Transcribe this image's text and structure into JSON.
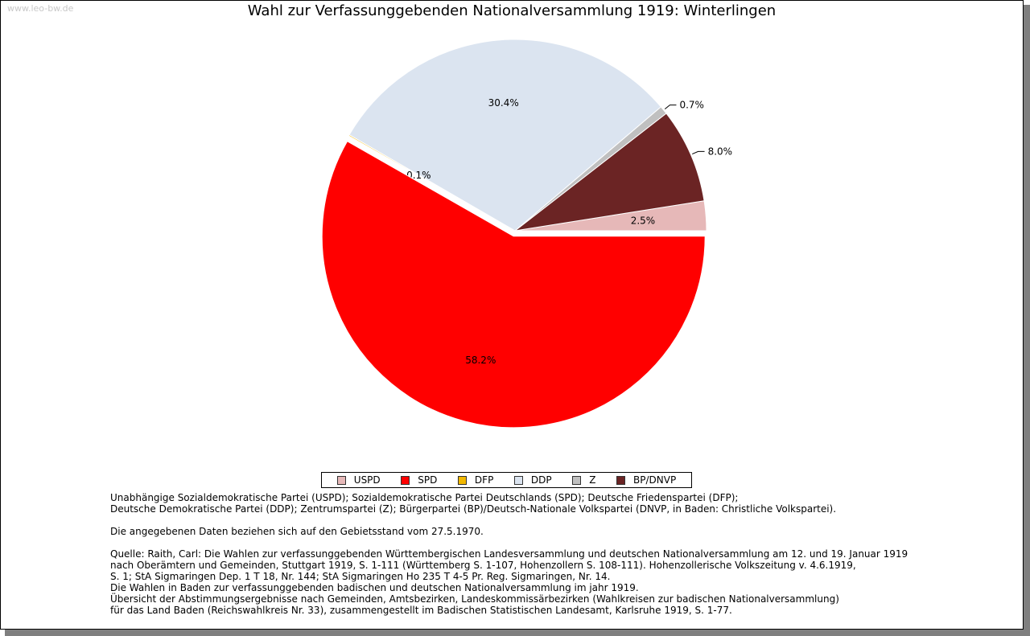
{
  "watermark": "www.leo-bw.de",
  "chart_data": {
    "type": "pie",
    "title": "Wahl zur Verfassunggebenden Nationalversammlung 1919: Winterlingen",
    "slices": [
      {
        "name": "USPD",
        "value": 2.5,
        "label": "2.5%",
        "color": "#e6b8b8"
      },
      {
        "name": "BP/DNVP",
        "value": 8.0,
        "label": "8.0%",
        "color": "#6b2424"
      },
      {
        "name": "Z",
        "value": 0.7,
        "label": "0.7%",
        "color": "#c0c0c0"
      },
      {
        "name": "DDP",
        "value": 30.4,
        "label": "30.4%",
        "color": "#dbe4f0"
      },
      {
        "name": "DFP",
        "value": 0.1,
        "label": "0.1%",
        "color": "#f2b800"
      },
      {
        "name": "SPD",
        "value": 58.2,
        "label": "58.2%",
        "color": "#ff0000"
      }
    ],
    "legend_order": [
      "USPD",
      "SPD",
      "DFP",
      "DDP",
      "Z",
      "BP/DNVP"
    ],
    "legend_position": "bottom"
  },
  "notes": {
    "parties_line1": "Unabhängige Sozialdemokratische Partei (USPD); Sozialdemokratische Partei Deutschlands (SPD); Deutsche Friedenspartei (DFP);",
    "parties_line2": "Deutsche Demokratische Partei (DDP); Zentrumspartei (Z); Bürgerpartei (BP)/Deutsch-Nationale Volkspartei (DNVP, in Baden: Christliche Volkspartei).",
    "territory": "Die angegebenen Daten beziehen sich auf den Gebietsstand vom 27.5.1970.",
    "source_1": "Quelle: Raith, Carl: Die Wahlen zur verfassunggebenden Württembergischen Landesversammlung und deutschen Nationalversammlung am 12. und 19. Januar 1919",
    "source_2": "nach Oberämtern und Gemeinden, Stuttgart 1919, S. 1-111 (Württemberg S. 1-107, Hohenzollern S. 108-111). Hohenzollerische Volkszeitung v. 4.6.1919,",
    "source_3": "S. 1; StA Sigmaringen Dep. 1 T 18, Nr. 144; StA Sigmaringen Ho 235 T 4-5 Pr. Reg. Sigmaringen, Nr. 14.",
    "source_4": "Die Wahlen in Baden zur verfassunggebenden badischen und deutschen Nationalversammlung im jahr 1919.",
    "source_5": "Übersicht der Abstimmungsergebnisse nach Gemeinden, Amtsbezirken, Landeskommissärbezirken (Wahlkreisen zur badischen Nationalversammlung)",
    "source_6": "für das Land Baden (Reichswahlkreis Nr. 33), zusammengestellt im Badischen Statistischen Landesamt, Karlsruhe 1919, S. 1-77."
  }
}
